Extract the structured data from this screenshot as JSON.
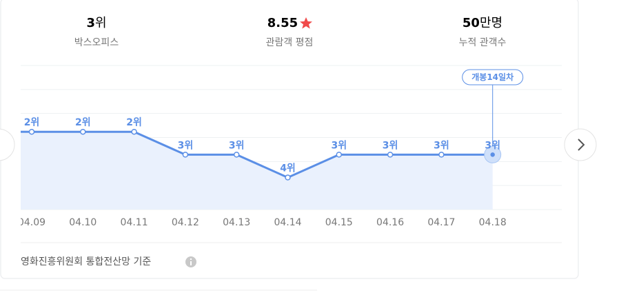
{
  "stats": [
    {
      "value": "3",
      "unit": "위",
      "label": "박스오피스"
    },
    {
      "value": "8.55",
      "label": "관람객 평점"
    },
    {
      "value": "50",
      "unit": "만명",
      "label": "누적 관객수"
    }
  ],
  "chart_data": {
    "type": "line",
    "categories": [
      "04.09",
      "04.10",
      "04.11",
      "04.12",
      "04.13",
      "04.14",
      "04.15",
      "04.16",
      "04.17",
      "04.18"
    ],
    "values": [
      2,
      2,
      2,
      3,
      3,
      4,
      3,
      3,
      3,
      3
    ],
    "value_labels": [
      "2위",
      "2위",
      "2위",
      "3위",
      "3위",
      "4위",
      "3위",
      "3위",
      "3위",
      "3위"
    ],
    "ylim": [
      5.4,
      -0.9
    ],
    "color": "#5b8fe6",
    "annotation": "개봉14일차"
  },
  "footer": "영화진흥위원회 통합전산망 기준"
}
